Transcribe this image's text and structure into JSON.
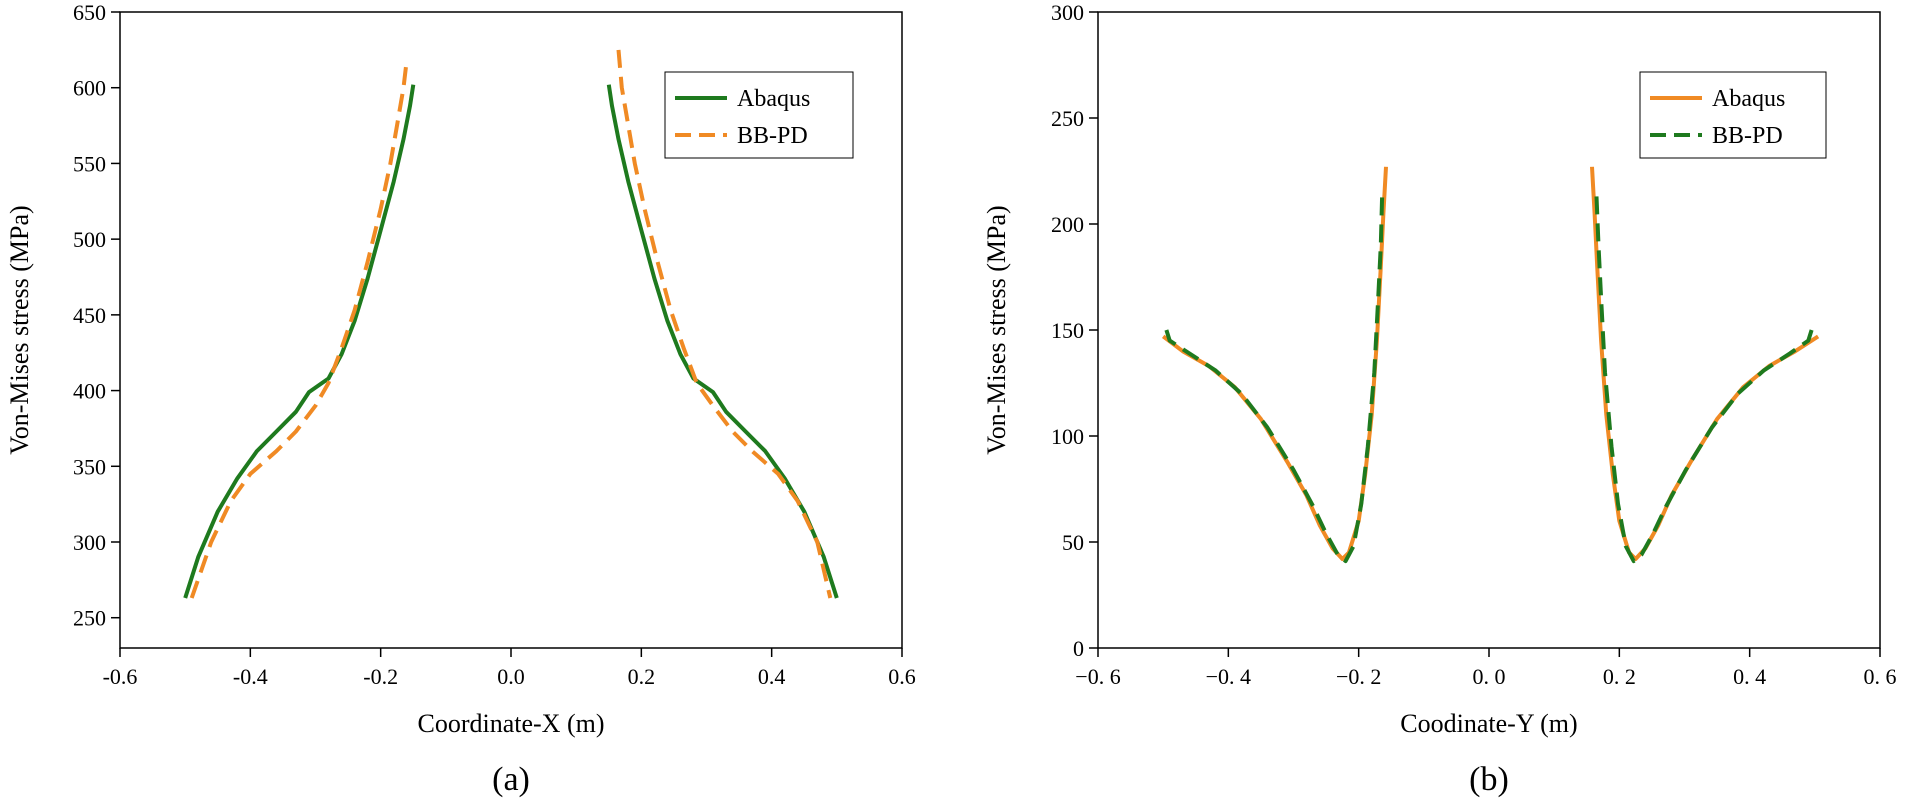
{
  "chart_data": [
    {
      "type": "line",
      "panel_label": "(a)",
      "xlabel": "Coordinate-X (m)",
      "ylabel": "Von-Mises stress (MPa)",
      "xlim": [
        -0.6,
        0.6
      ],
      "ylim": [
        230,
        650
      ],
      "xticks": [
        -0.6,
        -0.4,
        -0.2,
        0.0,
        0.2,
        0.4,
        0.6
      ],
      "xtick_labels": [
        "-0.6",
        "-0.4",
        "-0.2",
        "0.0",
        "0.2",
        "0.4",
        "0.6"
      ],
      "yticks": [
        250,
        300,
        350,
        400,
        450,
        500,
        550,
        600,
        650
      ],
      "ytick_labels": [
        "250",
        "300",
        "350",
        "400",
        "450",
        "500",
        "550",
        "600",
        "650"
      ],
      "legend_position": "top-right",
      "series": [
        {
          "name": "Abaqus",
          "color": "#1e7a1e",
          "dash": "solid",
          "segments": [
            [
              [
                -0.5,
                263
              ],
              [
                -0.48,
                290
              ],
              [
                -0.45,
                320
              ],
              [
                -0.42,
                342
              ],
              [
                -0.39,
                360
              ],
              [
                -0.36,
                373
              ],
              [
                -0.33,
                386
              ],
              [
                -0.31,
                399
              ],
              [
                -0.28,
                408
              ],
              [
                -0.26,
                424
              ],
              [
                -0.24,
                446
              ],
              [
                -0.22,
                474
              ],
              [
                -0.2,
                506
              ],
              [
                -0.18,
                538
              ],
              [
                -0.165,
                566
              ],
              [
                -0.155,
                588
              ],
              [
                -0.15,
                602
              ]
            ],
            [
              [
                0.15,
                602
              ],
              [
                0.155,
                588
              ],
              [
                0.165,
                566
              ],
              [
                0.18,
                538
              ],
              [
                0.2,
                506
              ],
              [
                0.22,
                474
              ],
              [
                0.24,
                446
              ],
              [
                0.26,
                424
              ],
              [
                0.28,
                408
              ],
              [
                0.31,
                399
              ],
              [
                0.33,
                386
              ],
              [
                0.36,
                373
              ],
              [
                0.39,
                360
              ],
              [
                0.42,
                342
              ],
              [
                0.45,
                320
              ],
              [
                0.48,
                290
              ],
              [
                0.5,
                263
              ]
            ]
          ]
        },
        {
          "name": "BB-PD",
          "color": "#f08a24",
          "dash": "dashed",
          "segments": [
            [
              [
                -0.49,
                263
              ],
              [
                -0.46,
                300
              ],
              [
                -0.43,
                327
              ],
              [
                -0.4,
                345
              ],
              [
                -0.36,
                360
              ],
              [
                -0.33,
                373
              ],
              [
                -0.3,
                390
              ],
              [
                -0.28,
                405
              ],
              [
                -0.26,
                428
              ],
              [
                -0.24,
                453
              ],
              [
                -0.22,
                485
              ],
              [
                -0.2,
                520
              ],
              [
                -0.185,
                550
              ],
              [
                -0.175,
                575
              ],
              [
                -0.165,
                600
              ],
              [
                -0.16,
                618
              ]
            ],
            [
              [
                0.165,
                625
              ],
              [
                0.17,
                600
              ],
              [
                0.18,
                575
              ],
              [
                0.19,
                550
              ],
              [
                0.205,
                520
              ],
              [
                0.225,
                485
              ],
              [
                0.245,
                453
              ],
              [
                0.265,
                428
              ],
              [
                0.285,
                405
              ],
              [
                0.31,
                390
              ],
              [
                0.34,
                373
              ],
              [
                0.37,
                360
              ],
              [
                0.41,
                345
              ],
              [
                0.44,
                327
              ],
              [
                0.47,
                300
              ],
              [
                0.49,
                263
              ]
            ]
          ]
        }
      ]
    },
    {
      "type": "line",
      "panel_label": "(b)",
      "xlabel": "Coodinate-Y (m)",
      "ylabel": "Von-Mises stress (MPa)",
      "xlim": [
        -0.6,
        0.6
      ],
      "ylim": [
        0,
        300
      ],
      "xticks": [
        -0.6,
        -0.4,
        -0.2,
        0.0,
        0.2,
        0.4,
        0.6
      ],
      "xtick_labels": [
        "−0. 6",
        "−0. 4",
        "−0. 2",
        "0. 0",
        "0. 2",
        "0. 4",
        "0. 6"
      ],
      "yticks": [
        0,
        50,
        100,
        150,
        200,
        250,
        300
      ],
      "ytick_labels": [
        "0",
        "50",
        "100",
        "150",
        "200",
        "250",
        "300"
      ],
      "legend_position": "top-right",
      "series": [
        {
          "name": "Abaqus",
          "color": "#f08a24",
          "dash": "solid",
          "segments": [
            [
              [
                -0.5,
                147
              ],
              [
                -0.47,
                140
              ],
              [
                -0.43,
                133
              ],
              [
                -0.39,
                123
              ],
              [
                -0.35,
                108
              ],
              [
                -0.31,
                88
              ],
              [
                -0.28,
                72
              ],
              [
                -0.26,
                58
              ],
              [
                -0.24,
                47
              ],
              [
                -0.225,
                42
              ],
              [
                -0.215,
                45
              ],
              [
                -0.2,
                60
              ],
              [
                -0.19,
                82
              ],
              [
                -0.18,
                110
              ],
              [
                -0.172,
                145
              ],
              [
                -0.166,
                180
              ],
              [
                -0.162,
                205
              ],
              [
                -0.158,
                227
              ]
            ],
            [
              [
                0.158,
                227
              ],
              [
                0.162,
                205
              ],
              [
                0.166,
                180
              ],
              [
                0.172,
                145
              ],
              [
                0.18,
                110
              ],
              [
                0.19,
                82
              ],
              [
                0.2,
                60
              ],
              [
                0.215,
                45
              ],
              [
                0.225,
                42
              ],
              [
                0.24,
                47
              ],
              [
                0.26,
                58
              ],
              [
                0.28,
                72
              ],
              [
                0.31,
                88
              ],
              [
                0.35,
                108
              ],
              [
                0.39,
                123
              ],
              [
                0.43,
                133
              ],
              [
                0.47,
                140
              ],
              [
                0.505,
                147
              ]
            ]
          ]
        },
        {
          "name": "BB-PD",
          "color": "#1e7a1e",
          "dash": "dashed",
          "segments": [
            [
              [
                -0.495,
                150
              ],
              [
                -0.49,
                145
              ],
              [
                -0.46,
                139
              ],
              [
                -0.42,
                131
              ],
              [
                -0.38,
                120
              ],
              [
                -0.34,
                104
              ],
              [
                -0.3,
                84
              ],
              [
                -0.27,
                67
              ],
              [
                -0.25,
                54
              ],
              [
                -0.232,
                44
              ],
              [
                -0.22,
                41
              ],
              [
                -0.208,
                48
              ],
              [
                -0.196,
                68
              ],
              [
                -0.186,
                95
              ],
              [
                -0.176,
                130
              ],
              [
                -0.17,
                165
              ],
              [
                -0.166,
                190
              ],
              [
                -0.164,
                213
              ]
            ],
            [
              [
                0.165,
                213
              ],
              [
                0.168,
                190
              ],
              [
                0.172,
                165
              ],
              [
                0.178,
                130
              ],
              [
                0.188,
                95
              ],
              [
                0.198,
                68
              ],
              [
                0.21,
                48
              ],
              [
                0.222,
                41
              ],
              [
                0.234,
                44
              ],
              [
                0.252,
                54
              ],
              [
                0.272,
                67
              ],
              [
                0.302,
                84
              ],
              [
                0.342,
                104
              ],
              [
                0.382,
                120
              ],
              [
                0.422,
                131
              ],
              [
                0.462,
                139
              ],
              [
                0.49,
                145
              ],
              [
                0.495,
                150
              ]
            ]
          ]
        }
      ]
    }
  ]
}
